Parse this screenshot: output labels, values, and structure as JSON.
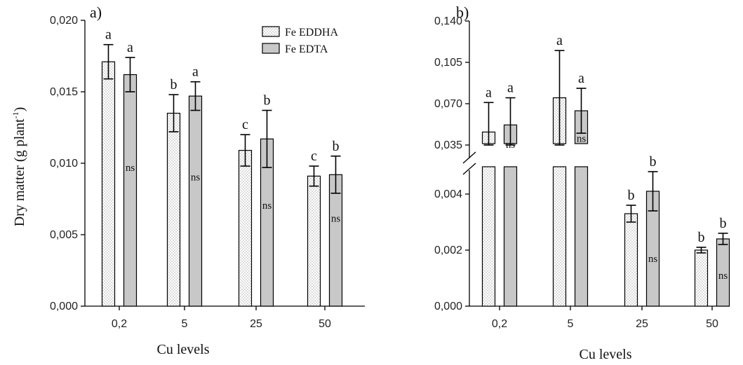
{
  "chart_data": [
    {
      "type": "bar",
      "panel_label": "a)",
      "xlabel": "Cu levels",
      "ylabel": "Dry matter (g plant",
      "ylabel_sup": "-1",
      "ylabel_close": ")",
      "categories": [
        "0,2",
        "5",
        "25",
        "50"
      ],
      "ylim": [
        0,
        0.02
      ],
      "yticks": [
        "0,000",
        "0,005",
        "0,010",
        "0,015",
        "0,020"
      ],
      "ytick_values": [
        0,
        0.005,
        0.01,
        0.015,
        0.02
      ],
      "legend": [
        "Fe EDDHA",
        "Fe EDTA"
      ],
      "legend_position": "top-right",
      "series": [
        {
          "name": "Fe EDDHA",
          "values": [
            0.0171,
            0.0135,
            0.0109,
            0.0091
          ],
          "errors": [
            0.0012,
            0.0013,
            0.0011,
            0.0007
          ],
          "letters": [
            "a",
            "b",
            "c",
            "c"
          ],
          "pattern": "dotted"
        },
        {
          "name": "Fe EDTA",
          "values": [
            0.0162,
            0.0147,
            0.0117,
            0.0092
          ],
          "errors": [
            0.0012,
            0.001,
            0.002,
            0.0013
          ],
          "letters": [
            "a",
            "a",
            "b",
            "b"
          ],
          "ns": [
            "ns",
            "ns",
            "ns",
            "ns"
          ],
          "color": "#c8c8c8"
        }
      ]
    },
    {
      "type": "bar",
      "panel_label": "b)",
      "xlabel": "Cu levels",
      "categories": [
        "0,2",
        "5",
        "25",
        "50"
      ],
      "broken_axis": true,
      "lower_range": [
        0,
        0.005
      ],
      "upper_range": [
        0.035,
        0.14
      ],
      "yticks_lower": [
        "0,000",
        "0,002",
        "0,004"
      ],
      "ytick_values_lower": [
        0,
        0.002,
        0.004
      ],
      "yticks_upper": [
        "0,035",
        "0,070",
        "0,105",
        "0,140"
      ],
      "ytick_values_upper": [
        0.035,
        0.07,
        0.105,
        0.14
      ],
      "series": [
        {
          "name": "Fe EDDHA",
          "values": [
            0.046,
            0.075,
            0.0033,
            0.002
          ],
          "errors": [
            0.025,
            0.04,
            0.0003,
            0.0001
          ],
          "letters": [
            "a",
            "a",
            "b",
            "b"
          ],
          "pattern": "dotted"
        },
        {
          "name": "Fe EDTA",
          "values": [
            0.052,
            0.064,
            0.0041,
            0.0024
          ],
          "errors": [
            0.023,
            0.019,
            0.0007,
            0.0002
          ],
          "letters": [
            "a",
            "a",
            "b",
            "b"
          ],
          "ns": [
            "ns",
            "ns",
            "ns",
            "ns"
          ],
          "color": "#c8c8c8"
        }
      ]
    }
  ]
}
